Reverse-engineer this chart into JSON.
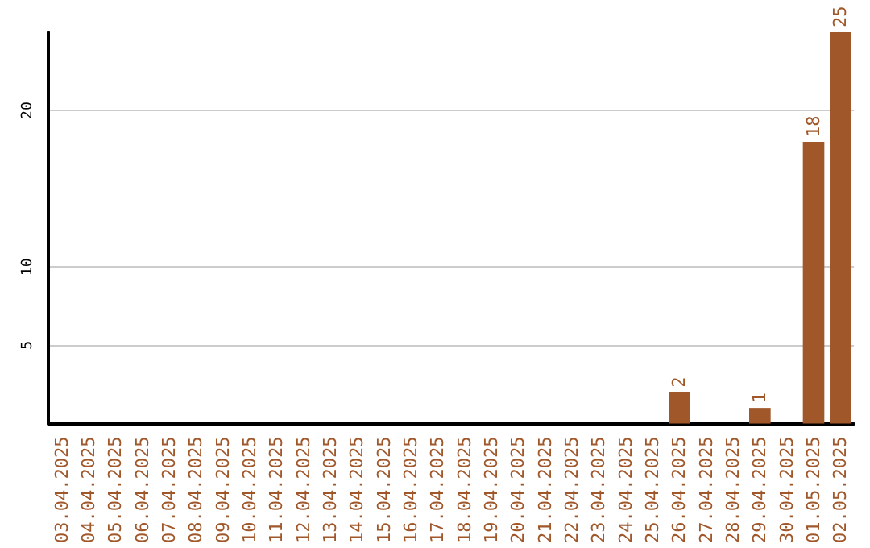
{
  "chart_data": {
    "type": "bar",
    "categories": [
      "03.04.2025",
      "04.04.2025",
      "05.04.2025",
      "06.04.2025",
      "07.04.2025",
      "08.04.2025",
      "09.04.2025",
      "10.04.2025",
      "11.04.2025",
      "12.04.2025",
      "13.04.2025",
      "14.04.2025",
      "15.04.2025",
      "16.04.2025",
      "17.04.2025",
      "18.04.2025",
      "19.04.2025",
      "20.04.2025",
      "21.04.2025",
      "22.04.2025",
      "23.04.2025",
      "24.04.2025",
      "25.04.2025",
      "26.04.2025",
      "27.04.2025",
      "28.04.2025",
      "29.04.2025",
      "30.04.2025",
      "01.05.2025",
      "02.05.2025"
    ],
    "values": [
      0,
      0,
      0,
      0,
      0,
      0,
      0,
      0,
      0,
      0,
      0,
      0,
      0,
      0,
      0,
      0,
      0,
      0,
      0,
      0,
      0,
      0,
      0,
      2,
      0,
      0,
      1,
      0,
      18,
      25
    ],
    "value_labels": [
      null,
      null,
      null,
      null,
      null,
      null,
      null,
      null,
      null,
      null,
      null,
      null,
      null,
      null,
      null,
      null,
      null,
      null,
      null,
      null,
      null,
      null,
      null,
      "2",
      null,
      null,
      "1",
      null,
      "18",
      "25"
    ],
    "color": "#a0572a",
    "ylim": [
      0,
      25
    ],
    "yticks": [
      5,
      10,
      20
    ],
    "grid": "y"
  }
}
